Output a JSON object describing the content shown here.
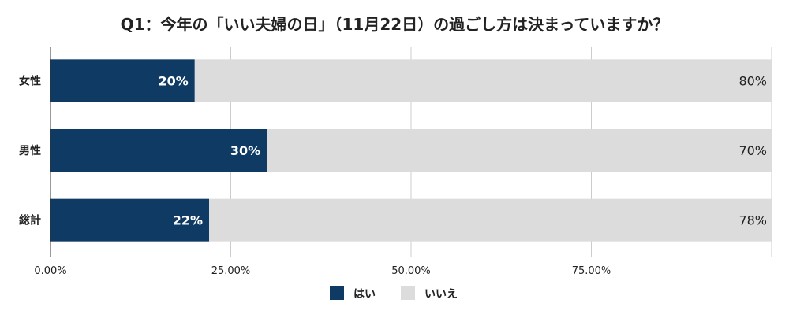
{
  "chart_data": {
    "type": "bar",
    "orientation": "horizontal",
    "stacked": true,
    "title": "Q1：今年の「いい夫婦の日」（11月22日）の過ごし方は決まっていますか？",
    "categories": [
      "女性",
      "男性",
      "総計"
    ],
    "series": [
      {
        "name": "はい",
        "values": [
          20,
          30,
          22
        ],
        "labels": [
          "20%",
          "30%",
          "22%"
        ],
        "color": "#0e3a63"
      },
      {
        "name": "いいえ",
        "values": [
          80,
          70,
          78
        ],
        "labels": [
          "80%",
          "70%",
          "78%"
        ],
        "color": "#dcdcdc"
      }
    ],
    "xlim": [
      0,
      100
    ],
    "x_ticks": [
      0,
      25,
      50,
      75
    ],
    "x_tick_labels": [
      "0.00%",
      "25.00%",
      "50.00%",
      "75.00%"
    ],
    "grid": true,
    "legend_position": "bottom-center"
  }
}
